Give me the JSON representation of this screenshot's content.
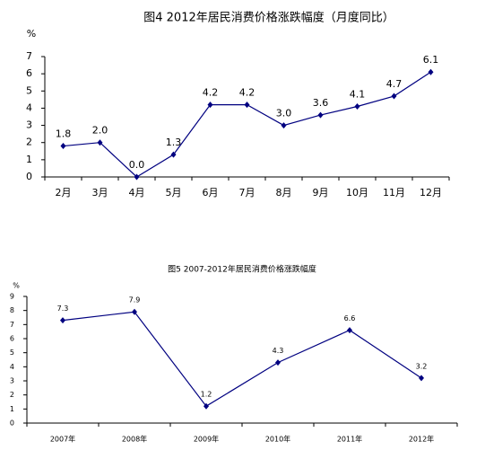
{
  "chart_data": [
    {
      "type": "line",
      "title": "图4  2012年居民消费价格涨跌幅度（月度同比）",
      "y_unit": "%",
      "categories": [
        "2月",
        "3月",
        "4月",
        "5月",
        "6月",
        "7月",
        "8月",
        "9月",
        "10月",
        "11月",
        "12月"
      ],
      "series": [
        {
          "color": "#000080",
          "values": [
            1.8,
            2.0,
            0.0,
            1.3,
            4.2,
            4.2,
            3.0,
            3.6,
            4.1,
            4.7,
            6.1
          ],
          "value_labels": [
            "1.8",
            "2.0",
            "0.0",
            "1.3",
            "4.2",
            "4.2",
            "3.0",
            "3.6",
            "4.1",
            "4.7",
            "6.1"
          ]
        }
      ],
      "ylim": [
        0,
        7
      ],
      "yticks": [
        0,
        1,
        2,
        3,
        4,
        5,
        6,
        7
      ]
    },
    {
      "type": "line",
      "title": "图5   2007-2012年居民消费价格涨跌幅度",
      "y_unit": "%",
      "categories": [
        "2007年",
        "2008年",
        "2009年",
        "2010年",
        "2011年",
        "2012年"
      ],
      "series": [
        {
          "color": "#000080",
          "values": [
            7.3,
            7.9,
            1.2,
            4.3,
            6.6,
            3.2
          ],
          "value_labels": [
            "7.3",
            "7.9",
            "1.2",
            "4.3",
            "6.6",
            "3.2"
          ]
        }
      ],
      "ylim": [
        0,
        9
      ],
      "yticks": [
        0,
        1,
        2,
        3,
        4,
        5,
        6,
        7,
        8,
        9
      ]
    }
  ]
}
